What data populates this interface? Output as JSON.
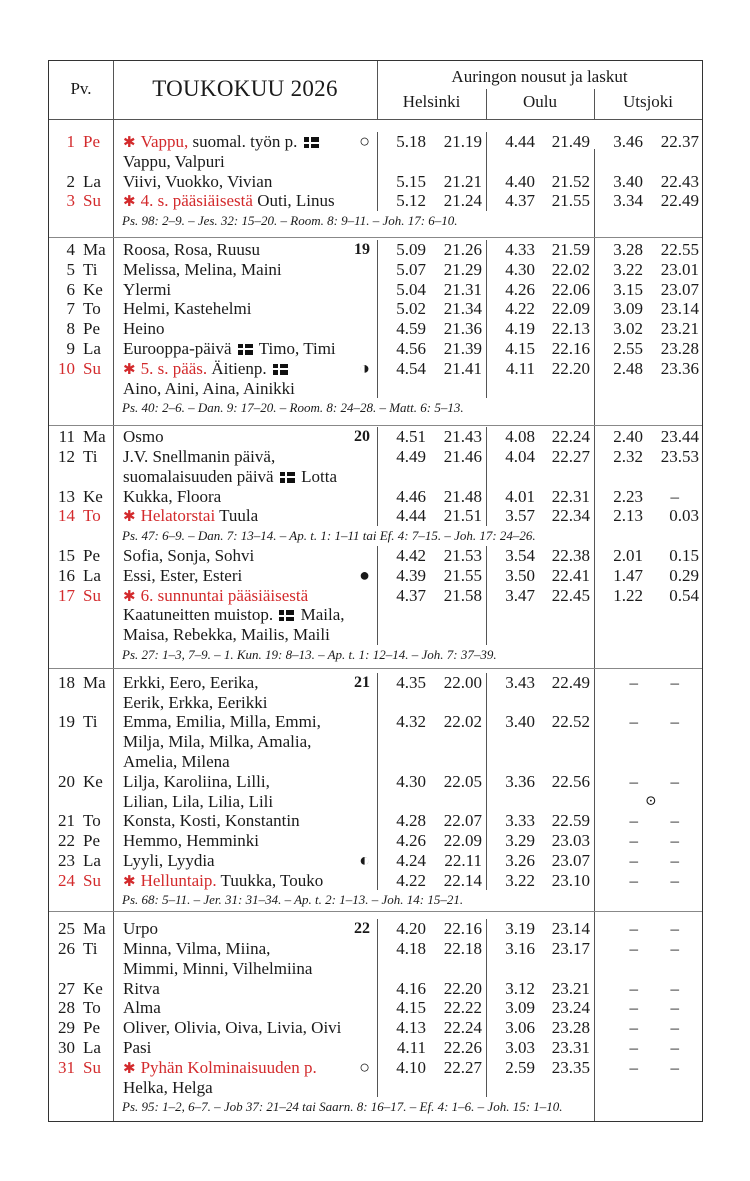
{
  "header": {
    "pv": "Pv.",
    "title": "TOUKOKUU 2026",
    "sun_title": "Auringon nousut ja laskut",
    "cities": [
      "Helsinki",
      "Oulu",
      "Utsjoki"
    ]
  },
  "colors": {
    "holiday": "#d32a2c"
  },
  "icons": {
    "star": "✱",
    "full-moon-icon": "○",
    "new-moon-icon": "●",
    "first-quarter-icon": "◑",
    "last-quarter-icon": "◐",
    "midnight-sun-icon": "⊙"
  },
  "sections": [
    {
      "items": [
        {
          "type": "day",
          "d": "1",
          "wd": "Pe",
          "holiday": true,
          "right": {
            "moon": "full-moon-icon"
          },
          "times": [
            "5.18",
            "21.19",
            "4.44",
            "21.49",
            "3.46",
            "22.37"
          ],
          "lines": [
            [
              {
                "t": "Vappu,",
                "red": true
              },
              {
                "t": " suomal. työn p. "
              },
              {
                "flag": true
              }
            ],
            [
              {
                "t": "Vappu, Valpuri"
              }
            ]
          ]
        },
        {
          "type": "day",
          "d": "2",
          "wd": "La",
          "times": [
            "5.15",
            "21.21",
            "4.40",
            "21.52",
            "3.40",
            "22.43"
          ],
          "lines": [
            [
              {
                "t": "Viivi, Vuokko, Vivian"
              }
            ]
          ]
        },
        {
          "type": "day",
          "d": "3",
          "wd": "Su",
          "holiday": true,
          "times": [
            "5.12",
            "21.24",
            "4.37",
            "21.55",
            "3.34",
            "22.49"
          ],
          "lines": [
            [
              {
                "t": "4. s. pääsiäisestä",
                "red": true
              },
              {
                "t": " Outi, Linus"
              }
            ]
          ]
        },
        {
          "type": "reading",
          "t": "Ps. 98: 2–9. – Jes. 32: 15–20. – Room. 8: 9–11. – Joh. 17: 6–10."
        }
      ]
    },
    {
      "items": [
        {
          "type": "day",
          "d": "4",
          "wd": "Ma",
          "right": {
            "week": "19"
          },
          "times": [
            "5.09",
            "21.26",
            "4.33",
            "21.59",
            "3.28",
            "22.55"
          ],
          "lines": [
            [
              {
                "t": "Roosa, Rosa, Ruusu"
              }
            ]
          ]
        },
        {
          "type": "day",
          "d": "5",
          "wd": "Ti",
          "times": [
            "5.07",
            "21.29",
            "4.30",
            "22.02",
            "3.22",
            "23.01"
          ],
          "lines": [
            [
              {
                "t": "Melissa, Melina, Maini"
              }
            ]
          ]
        },
        {
          "type": "day",
          "d": "6",
          "wd": "Ke",
          "times": [
            "5.04",
            "21.31",
            "4.26",
            "22.06",
            "3.15",
            "23.07"
          ],
          "lines": [
            [
              {
                "t": "Ylermi"
              }
            ]
          ]
        },
        {
          "type": "day",
          "d": "7",
          "wd": "To",
          "times": [
            "5.02",
            "21.34",
            "4.22",
            "22.09",
            "3.09",
            "23.14"
          ],
          "lines": [
            [
              {
                "t": "Helmi, Kastehelmi"
              }
            ]
          ]
        },
        {
          "type": "day",
          "d": "8",
          "wd": "Pe",
          "times": [
            "4.59",
            "21.36",
            "4.19",
            "22.13",
            "3.02",
            "23.21"
          ],
          "lines": [
            [
              {
                "t": "Heino"
              }
            ]
          ]
        },
        {
          "type": "day",
          "d": "9",
          "wd": "La",
          "times": [
            "4.56",
            "21.39",
            "4.15",
            "22.16",
            "2.55",
            "23.28"
          ],
          "lines": [
            [
              {
                "t": "Eurooppa-päivä "
              },
              {
                "flag": true
              },
              {
                "t": " Timo, Timi"
              }
            ]
          ]
        },
        {
          "type": "day",
          "d": "10",
          "wd": "Su",
          "holiday": true,
          "right": {
            "moon": "first-quarter-icon"
          },
          "times": [
            "4.54",
            "21.41",
            "4.11",
            "22.20",
            "2.48",
            "23.36"
          ],
          "lines": [
            [
              {
                "t": "5. s. pääs.",
                "red": true
              },
              {
                "t": " Äitienp. "
              },
              {
                "flag": true
              }
            ],
            [
              {
                "t": "Aino, Aini, Aina, Ainikki"
              }
            ]
          ]
        },
        {
          "type": "reading",
          "t": "Ps. 40: 2–6. – Dan. 9: 17–20. – Room. 8: 24–28. – Matt. 6: 5–13."
        }
      ]
    },
    {
      "items": [
        {
          "type": "day",
          "d": "11",
          "wd": "Ma",
          "right": {
            "week": "20"
          },
          "times": [
            "4.51",
            "21.43",
            "4.08",
            "22.24",
            "2.40",
            "23.44"
          ],
          "lines": [
            [
              {
                "t": "Osmo"
              }
            ]
          ]
        },
        {
          "type": "day",
          "d": "12",
          "wd": "Ti",
          "times": [
            "4.49",
            "21.46",
            "4.04",
            "22.27",
            "2.32",
            "23.53"
          ],
          "lines": [
            [
              {
                "t": "J.V. Snellmanin päivä,"
              }
            ],
            [
              {
                "t": "suomalaisuuden päivä "
              },
              {
                "flag": true
              },
              {
                "t": " Lotta"
              }
            ]
          ]
        },
        {
          "type": "day",
          "d": "13",
          "wd": "Ke",
          "times": [
            "4.46",
            "21.48",
            "4.01",
            "22.31",
            "2.23",
            "–"
          ],
          "lines": [
            [
              {
                "t": "Kukka, Floora"
              }
            ]
          ]
        },
        {
          "type": "day",
          "d": "14",
          "wd": "To",
          "holiday": true,
          "times": [
            "4.44",
            "21.51",
            "3.57",
            "22.34",
            "2.13",
            "0.03"
          ],
          "lines": [
            [
              {
                "t": "Helatorstai",
                "red": true
              },
              {
                "t": " Tuula"
              }
            ]
          ]
        },
        {
          "type": "reading",
          "t": "Ps. 47: 6–9. – Dan. 7: 13–14. – Ap. t. 1: 1–11 tai Ef. 4: 7–15. – Joh. 17: 24–26."
        },
        {
          "type": "day",
          "d": "15",
          "wd": "Pe",
          "times": [
            "4.42",
            "21.53",
            "3.54",
            "22.38",
            "2.01",
            "0.15"
          ],
          "lines": [
            [
              {
                "t": "Sofia, Sonja, Sohvi"
              }
            ]
          ]
        },
        {
          "type": "day",
          "d": "16",
          "wd": "La",
          "right": {
            "moon": "new-moon-icon"
          },
          "times": [
            "4.39",
            "21.55",
            "3.50",
            "22.41",
            "1.47",
            "0.29"
          ],
          "lines": [
            [
              {
                "t": "Essi, Ester, Esteri"
              }
            ]
          ]
        },
        {
          "type": "day",
          "d": "17",
          "wd": "Su",
          "holiday": true,
          "times": [
            "4.37",
            "21.58",
            "3.47",
            "22.45",
            "1.22",
            "0.54"
          ],
          "lines": [
            [
              {
                "t": "6. sunnuntai pääsiäisestä",
                "red": true
              }
            ],
            [
              {
                "t": "Kaatuneitten muistop. "
              },
              {
                "flag": true
              },
              {
                "t": " Maila,"
              }
            ],
            [
              {
                "t": "Maisa, Rebekka, Mailis, Maili"
              }
            ]
          ]
        },
        {
          "type": "reading",
          "t": "Ps. 27: 1–3, 7–9. – 1. Kun. 19: 8–13. – Ap. t. 1: 12–14. – Joh. 7: 37–39."
        }
      ]
    },
    {
      "items": [
        {
          "type": "day",
          "d": "18",
          "wd": "Ma",
          "right": {
            "week": "21"
          },
          "times": [
            "4.35",
            "22.00",
            "3.43",
            "22.49",
            "–",
            "–"
          ],
          "lines": [
            [
              {
                "t": "Erkki, Eero, Eerika,"
              }
            ],
            [
              {
                "t": "Eerik, Erkka, Eerikki"
              }
            ]
          ]
        },
        {
          "type": "day",
          "d": "19",
          "wd": "Ti",
          "times": [
            "4.32",
            "22.02",
            "3.40",
            "22.52",
            "–",
            "–"
          ],
          "lines": [
            [
              {
                "t": "Emma, Emilia, Milla, Emmi,"
              }
            ],
            [
              {
                "t": "Milja, Mila, Milka, Amalia,"
              }
            ],
            [
              {
                "t": "Amelia, Milena"
              }
            ]
          ]
        },
        {
          "type": "day",
          "d": "20",
          "wd": "Ke",
          "times": [
            "4.30",
            "22.05",
            "3.36",
            "22.56",
            "–",
            "–"
          ],
          "uts_mark": {
            "line": 1,
            "icon": "midnight-sun-icon"
          },
          "lines": [
            [
              {
                "t": "Lilja, Karoliina, Lilli,"
              }
            ],
            [
              {
                "t": "Lilian, Lila, Lilia, Lili"
              }
            ]
          ]
        },
        {
          "type": "day",
          "d": "21",
          "wd": "To",
          "times": [
            "4.28",
            "22.07",
            "3.33",
            "22.59",
            "–",
            "–"
          ],
          "lines": [
            [
              {
                "t": "Konsta, Kosti, Konstantin"
              }
            ]
          ]
        },
        {
          "type": "day",
          "d": "22",
          "wd": "Pe",
          "times": [
            "4.26",
            "22.09",
            "3.29",
            "23.03",
            "–",
            "–"
          ],
          "lines": [
            [
              {
                "t": "Hemmo, Hemminki"
              }
            ]
          ]
        },
        {
          "type": "day",
          "d": "23",
          "wd": "La",
          "right": {
            "moon": "last-quarter-icon"
          },
          "times": [
            "4.24",
            "22.11",
            "3.26",
            "23.07",
            "–",
            "–"
          ],
          "lines": [
            [
              {
                "t": "Lyyli, Lyydia"
              }
            ]
          ]
        },
        {
          "type": "day",
          "d": "24",
          "wd": "Su",
          "holiday": true,
          "times": [
            "4.22",
            "22.14",
            "3.22",
            "23.10",
            "–",
            "–"
          ],
          "lines": [
            [
              {
                "t": "Helluntaip.",
                "red": true
              },
              {
                "t": " Tuukka, Touko"
              }
            ]
          ]
        },
        {
          "type": "reading",
          "t": "Ps. 68: 5–11. – Jer. 31: 31–34. – Ap. t. 2: 1–13. – Joh. 14: 15–21."
        }
      ]
    },
    {
      "items": [
        {
          "type": "day",
          "d": "25",
          "wd": "Ma",
          "right": {
            "week": "22"
          },
          "times": [
            "4.20",
            "22.16",
            "3.19",
            "23.14",
            "–",
            "–"
          ],
          "lines": [
            [
              {
                "t": "Urpo"
              }
            ]
          ]
        },
        {
          "type": "day",
          "d": "26",
          "wd": "Ti",
          "times": [
            "4.18",
            "22.18",
            "3.16",
            "23.17",
            "–",
            "–"
          ],
          "lines": [
            [
              {
                "t": "Minna, Vilma, Miina,"
              }
            ],
            [
              {
                "t": "Mimmi, Minni, Vilhelmiina"
              }
            ]
          ]
        },
        {
          "type": "day",
          "d": "27",
          "wd": "Ke",
          "times": [
            "4.16",
            "22.20",
            "3.12",
            "23.21",
            "–",
            "–"
          ],
          "lines": [
            [
              {
                "t": "Ritva"
              }
            ]
          ]
        },
        {
          "type": "day",
          "d": "28",
          "wd": "To",
          "times": [
            "4.15",
            "22.22",
            "3.09",
            "23.24",
            "–",
            "–"
          ],
          "lines": [
            [
              {
                "t": "Alma"
              }
            ]
          ]
        },
        {
          "type": "day",
          "d": "29",
          "wd": "Pe",
          "times": [
            "4.13",
            "22.24",
            "3.06",
            "23.28",
            "–",
            "–"
          ],
          "lines": [
            [
              {
                "t": "Oliver, Olivia, Oiva, Livia, Oivi"
              }
            ]
          ]
        },
        {
          "type": "day",
          "d": "30",
          "wd": "La",
          "times": [
            "4.11",
            "22.26",
            "3.03",
            "23.31",
            "–",
            "–"
          ],
          "lines": [
            [
              {
                "t": "Pasi"
              }
            ]
          ]
        },
        {
          "type": "day",
          "d": "31",
          "wd": "Su",
          "holiday": true,
          "right": {
            "moon": "full-moon-icon"
          },
          "times": [
            "4.10",
            "22.27",
            "2.59",
            "23.35",
            "–",
            "–"
          ],
          "lines": [
            [
              {
                "t": "Pyhän Kolminaisuuden p.",
                "red": true
              }
            ],
            [
              {
                "t": "Helka, Helga"
              }
            ]
          ]
        },
        {
          "type": "reading",
          "t": "Ps. 95: 1–2, 6–7. – Job 37: 21–24 tai Saarn. 8: 16–17. – Ef. 4: 1–6. – Joh. 15: 1–10."
        }
      ]
    }
  ]
}
